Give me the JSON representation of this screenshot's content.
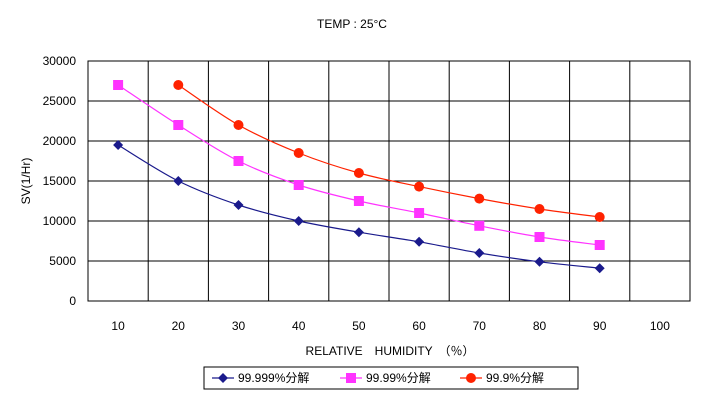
{
  "chart_data": {
    "type": "line",
    "title": "TEMP : 25°C",
    "xlabel": "RELATIVE　HUMIDITY　（％）",
    "ylabel": "SV(1/Hr)",
    "x_ticks": [
      10,
      20,
      30,
      40,
      50,
      60,
      70,
      80,
      90,
      100
    ],
    "y_ticks": [
      0,
      5000,
      10000,
      15000,
      20000,
      25000,
      30000
    ],
    "xlim": [
      5,
      105
    ],
    "ylim": [
      0,
      30000
    ],
    "grid": true,
    "legend_position": "bottom",
    "series": [
      {
        "name": "99.999%分解",
        "color": "#1a1a8c",
        "marker": "diamond",
        "x": [
          10,
          20,
          30,
          40,
          50,
          60,
          70,
          80,
          90
        ],
        "values": [
          19500,
          15000,
          12000,
          10000,
          8600,
          7400,
          6000,
          4900,
          4100
        ]
      },
      {
        "name": "99.99%分解",
        "color": "#ff33ff",
        "marker": "square",
        "x": [
          10,
          20,
          30,
          40,
          50,
          60,
          70,
          80,
          90
        ],
        "values": [
          27000,
          22000,
          17500,
          14500,
          12500,
          11000,
          9400,
          8000,
          7000
        ]
      },
      {
        "name": "99.9%分解",
        "color": "#ff2200",
        "marker": "circle",
        "x": [
          20,
          30,
          40,
          50,
          60,
          70,
          80,
          90
        ],
        "values": [
          27000,
          22000,
          18500,
          16000,
          14300,
          12800,
          11500,
          10500
        ]
      }
    ]
  }
}
